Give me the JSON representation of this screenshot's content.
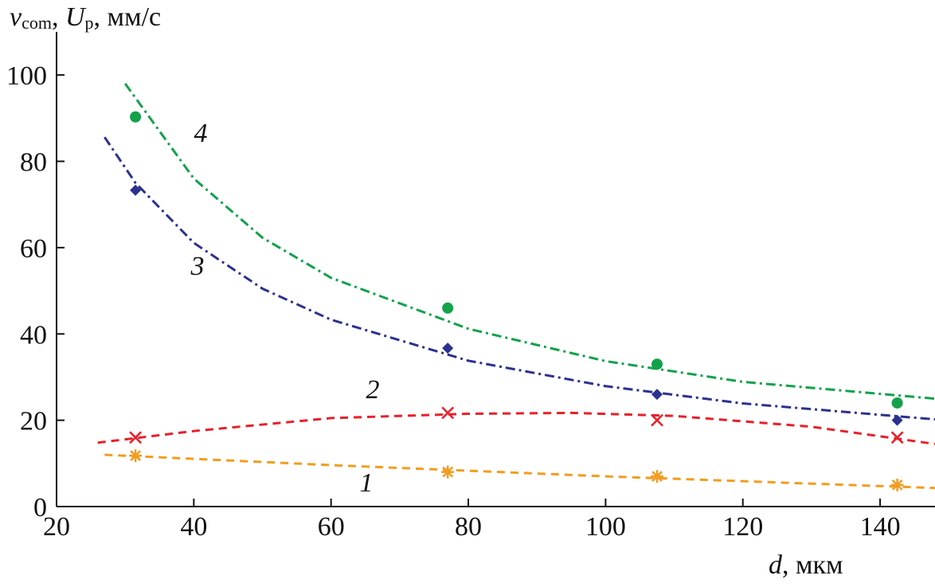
{
  "chart_data": {
    "type": "line",
    "ylabel": [
      "v",
      "com",
      ", ",
      "U",
      "p",
      ", мм/с"
    ],
    "xlabel": [
      "d",
      ", мкм"
    ],
    "xlim": [
      20,
      148
    ],
    "xticks": [
      20,
      40,
      60,
      80,
      100,
      120,
      140
    ],
    "ylim": [
      0,
      110
    ],
    "yticks": [
      0,
      20,
      40,
      60,
      80,
      100
    ],
    "series": [
      {
        "name": "1",
        "color": "#f39c1e",
        "marker": "asterisk",
        "dash": "10 7",
        "x": [
          31.5,
          77,
          107.5,
          142.5
        ],
        "values": [
          11.8,
          8,
          7,
          5
        ],
        "fit": {
          "x": [
            27,
            60,
            100,
            148
          ],
          "values": [
            12,
            9.6,
            7,
            4.3
          ]
        }
      },
      {
        "name": "2",
        "color": "#e8202a",
        "marker": "cross",
        "dash": "10 7",
        "x": [
          31.5,
          77,
          107.5,
          142.5
        ],
        "values": [
          16,
          21.7,
          20,
          16
        ],
        "fit": {
          "x": [
            26,
            40,
            60,
            80,
            95,
            110,
            130,
            148
          ],
          "values": [
            14.8,
            17.5,
            20.5,
            21.5,
            21.7,
            21,
            18.5,
            14.5
          ]
        }
      },
      {
        "name": "3",
        "color": "#2b3190",
        "marker": "diamond",
        "dash": "12 5 3 5",
        "x": [
          31.5,
          77,
          107.5,
          142.5
        ],
        "values": [
          73.3,
          36.7,
          26,
          20
        ],
        "fit": {
          "x": [
            27,
            31.5,
            40,
            50,
            60,
            80,
            100,
            120,
            148
          ],
          "values": [
            85.6,
            75,
            61.1,
            50.5,
            43.3,
            33.8,
            27.9,
            23.9,
            20.2
          ]
        }
      },
      {
        "name": "4",
        "color": "#12a24a",
        "marker": "circle",
        "dash": "12 5 3 5",
        "x": [
          31.5,
          77,
          107.5,
          142.5
        ],
        "values": [
          90.3,
          46,
          33,
          24
        ],
        "fit": {
          "x": [
            30,
            40,
            50,
            60,
            80,
            100,
            120,
            148
          ],
          "values": [
            98,
            76,
            62.3,
            53,
            41.2,
            33.7,
            28.9,
            25
          ]
        }
      }
    ]
  }
}
